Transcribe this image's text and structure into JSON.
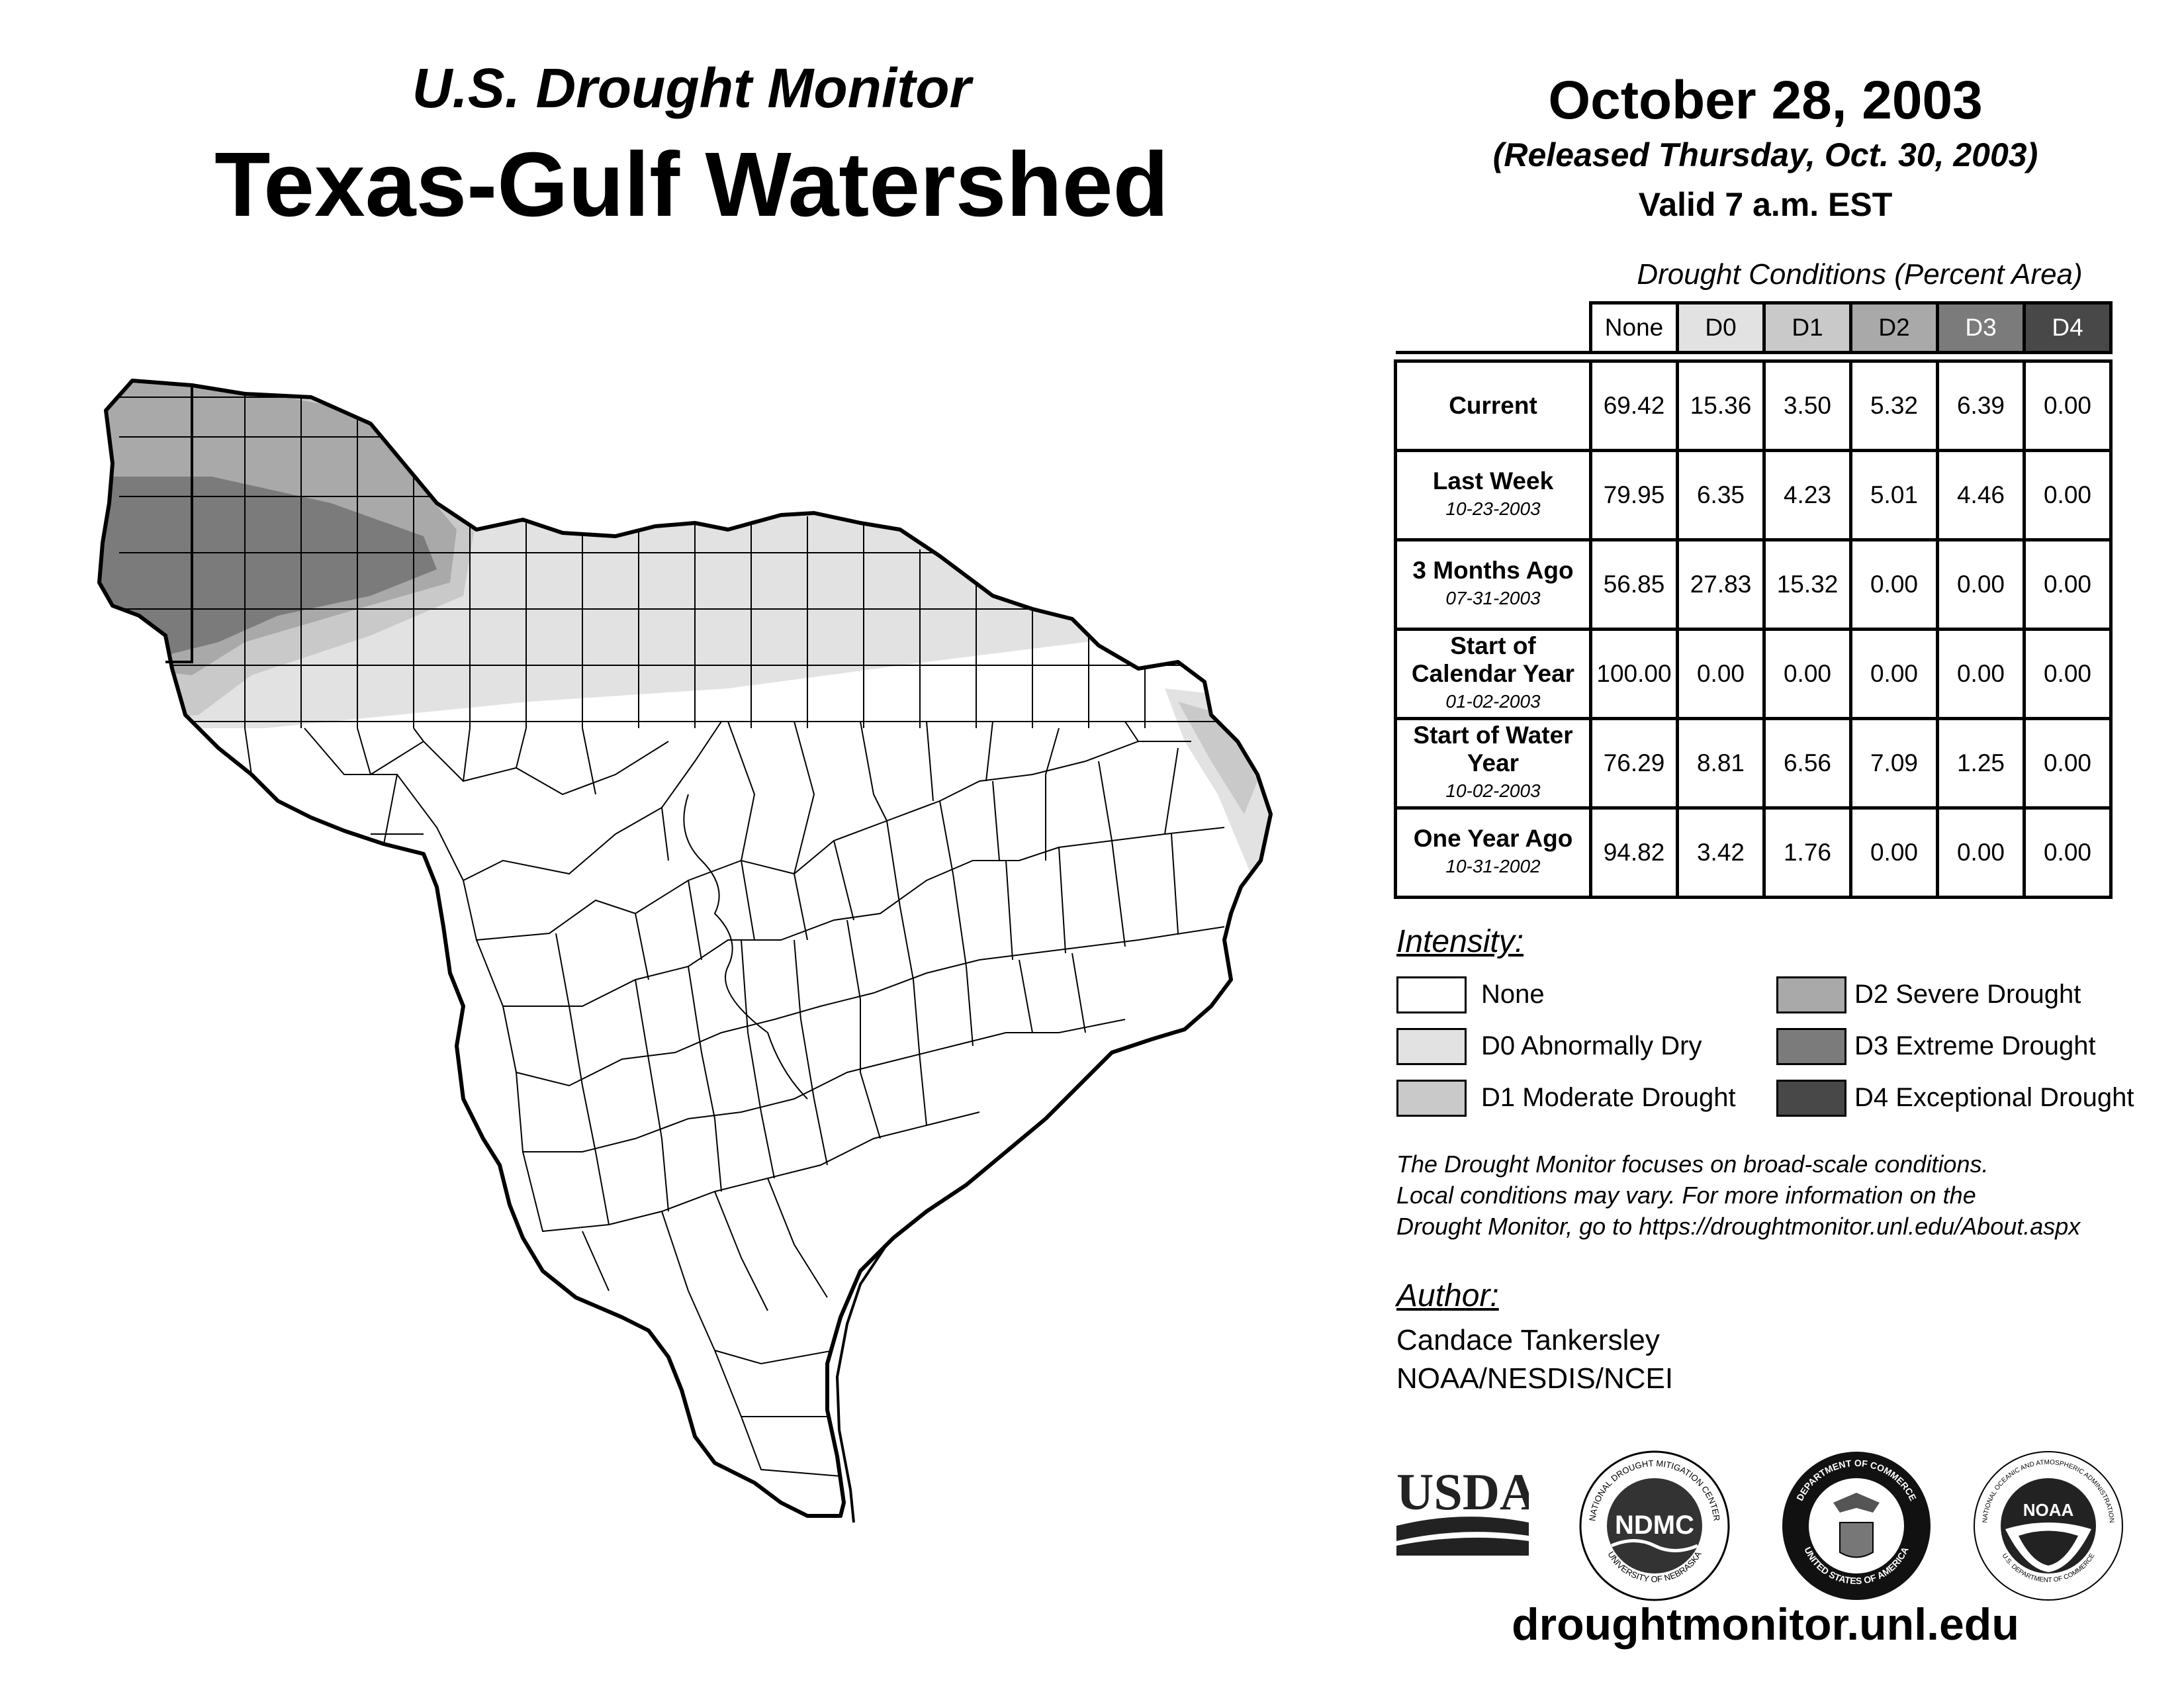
{
  "header": {
    "subtitle": "U.S. Drought Monitor",
    "title": "Texas-Gulf Watershed",
    "date": "October 28, 2003",
    "released": "(Released Thursday, Oct. 30, 2003)",
    "valid": "Valid 7 a.m. EST"
  },
  "table": {
    "caption": "Drought Conditions (Percent Area)",
    "columns": [
      "None",
      "D0",
      "D1",
      "D2",
      "D3",
      "D4"
    ],
    "rows": [
      {
        "label": "Current",
        "date": "",
        "values": [
          "69.42",
          "15.36",
          "3.50",
          "5.32",
          "6.39",
          "0.00"
        ]
      },
      {
        "label": "Last Week",
        "date": "10-23-2003",
        "values": [
          "79.95",
          "6.35",
          "4.23",
          "5.01",
          "4.46",
          "0.00"
        ]
      },
      {
        "label": "3 Months Ago",
        "date": "07-31-2003",
        "values": [
          "56.85",
          "27.83",
          "15.32",
          "0.00",
          "0.00",
          "0.00"
        ]
      },
      {
        "label": "Start of Calendar Year",
        "date": "01-02-2003",
        "values": [
          "100.00",
          "0.00",
          "0.00",
          "0.00",
          "0.00",
          "0.00"
        ]
      },
      {
        "label": "Start of Water Year",
        "date": "10-02-2003",
        "values": [
          "76.29",
          "8.81",
          "6.56",
          "7.09",
          "1.25",
          "0.00"
        ]
      },
      {
        "label": "One Year Ago",
        "date": "10-31-2002",
        "values": [
          "94.82",
          "3.42",
          "1.76",
          "0.00",
          "0.00",
          "0.00"
        ]
      }
    ]
  },
  "legend": {
    "title": "Intensity:",
    "items": [
      {
        "label": "None",
        "color": "#ffffff"
      },
      {
        "label": "D0 Abnormally Dry",
        "color": "#e2e2e2"
      },
      {
        "label": "D1 Moderate Drought",
        "color": "#c9c9c9"
      },
      {
        "label": "D2 Severe Drought",
        "color": "#a9a9a9"
      },
      {
        "label": "D3 Extreme Drought",
        "color": "#7b7b7b"
      },
      {
        "label": "D4 Exceptional Drought",
        "color": "#484848"
      }
    ]
  },
  "note": {
    "line1": "The Drought Monitor focuses on broad-scale conditions.",
    "line2": "Local conditions may vary. For more information on the",
    "line3": "Drought Monitor, go to https://droughtmonitor.unl.edu/About.aspx"
  },
  "author": {
    "title": "Author:",
    "name": "Candace Tankersley",
    "org": "NOAA/NESDIS/NCEI"
  },
  "logos": {
    "usda": "USDA",
    "ndmc": "NDMC",
    "ndmc_ring_top": "NATIONAL DROUGHT MITIGATION CENTER",
    "ndmc_ring_bottom": "UNIVERSITY OF NEBRASKA",
    "doc_ring_top": "DEPARTMENT OF COMMERCE",
    "doc_ring_bottom": "UNITED STATES OF AMERICA",
    "noaa": "NOAA",
    "noaa_ring_top": "NATIONAL OCEANIC AND ATMOSPHERIC ADMINISTRATION",
    "noaa_ring_bottom": "U.S. DEPARTMENT OF COMMERCE"
  },
  "website": "droughtmonitor.unl.edu",
  "colors": {
    "none": "#ffffff",
    "d0": "#e2e2e2",
    "d1": "#c9c9c9",
    "d2": "#a9a9a9",
    "d3": "#7b7b7b",
    "d4": "#484848"
  }
}
